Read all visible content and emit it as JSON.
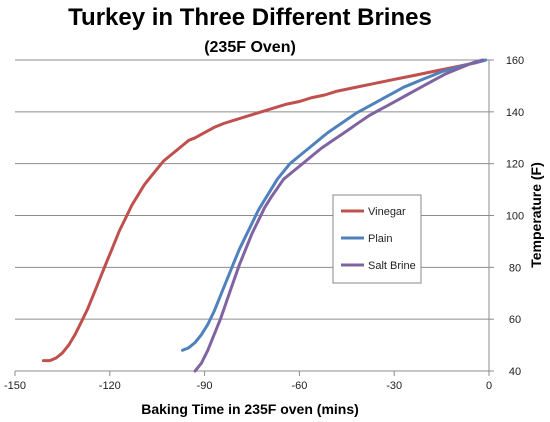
{
  "chart_data": {
    "type": "line",
    "title": "Turkey in Three Different Brines",
    "subtitle": "(235F Oven)",
    "xlabel": "Baking Time in 235F oven (mins)",
    "ylabel": "Temperature (F)",
    "xlim": [
      -150,
      0
    ],
    "ylim": [
      40,
      160
    ],
    "xticks": [
      -150,
      -120,
      -90,
      -60,
      -30,
      0
    ],
    "yticks": [
      40,
      60,
      80,
      100,
      120,
      140,
      160
    ],
    "grid": "horizontal",
    "legend_position": "center-right",
    "series": [
      {
        "name": "Vinegar",
        "color": "#C0504D",
        "x": [
          -141,
          -139,
          -137,
          -135,
          -133,
          -131,
          -129,
          -127,
          -125,
          -123,
          -121,
          -119,
          -117,
          -115,
          -113,
          -111,
          -109,
          -107,
          -105,
          -103,
          -101,
          -99,
          -97,
          -95,
          -93,
          -90,
          -87,
          -84,
          -80,
          -76,
          -72,
          -68,
          -64,
          -60,
          -56,
          -52,
          -48,
          -44,
          -40,
          -36,
          -32,
          -28,
          -24,
          -20,
          -16,
          -12,
          -8,
          -4,
          -2
        ],
        "y": [
          44,
          44,
          45,
          47,
          50,
          54,
          59,
          64,
          70,
          76,
          82,
          88,
          94,
          99,
          104,
          108,
          112,
          115,
          118,
          121,
          123,
          125,
          127,
          129,
          130,
          132,
          134,
          135.5,
          137,
          138.5,
          140,
          141.5,
          143,
          144,
          145.5,
          146.5,
          148,
          149,
          150,
          151,
          152,
          153,
          154,
          155,
          156,
          157,
          158,
          159,
          160
        ]
      },
      {
        "name": "Plain",
        "color": "#4F81BD",
        "x": [
          -97,
          -95,
          -93,
          -91,
          -89,
          -87,
          -85,
          -83,
          -81,
          -79,
          -77,
          -75,
          -73,
          -71,
          -69,
          -67,
          -65,
          -63,
          -60,
          -57,
          -54,
          -51,
          -48,
          -45,
          -42,
          -39,
          -36,
          -33,
          -30,
          -27,
          -24,
          -21,
          -18,
          -15,
          -12,
          -9,
          -6,
          -3,
          -1
        ],
        "y": [
          48,
          49,
          51,
          54,
          58,
          63,
          69,
          75,
          81,
          87,
          92,
          97,
          102,
          106,
          110,
          114,
          117,
          120,
          123,
          126,
          129,
          132,
          134.5,
          137,
          139.5,
          141.5,
          143.5,
          145.5,
          147.5,
          149.5,
          151,
          152.5,
          154,
          155.5,
          156.5,
          157.5,
          158.5,
          159.3,
          160
        ]
      },
      {
        "name": "Salt Brine",
        "color": "#8064A2",
        "x": [
          -93,
          -91,
          -89,
          -87,
          -85,
          -83,
          -81,
          -79,
          -77,
          -75,
          -73,
          -71,
          -69,
          -67,
          -65,
          -62,
          -59,
          -56,
          -53,
          -50,
          -47,
          -44,
          -41,
          -38,
          -35,
          -32,
          -29,
          -26,
          -23,
          -20,
          -17,
          -14,
          -11,
          -8,
          -5,
          -2
        ],
        "y": [
          40,
          43,
          48,
          54,
          60,
          67,
          74,
          81,
          87,
          93,
          98,
          103,
          107,
          110.5,
          114,
          117,
          120,
          123,
          126,
          128.5,
          131,
          133.5,
          136,
          138.5,
          140.5,
          142.5,
          144.5,
          146.5,
          148.5,
          150.5,
          152.5,
          154.5,
          156,
          157.5,
          159,
          160
        ]
      }
    ]
  }
}
